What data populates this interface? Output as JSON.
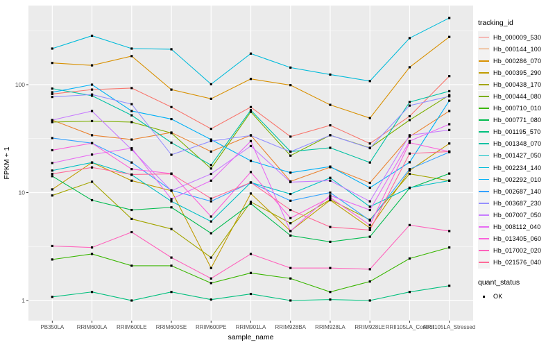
{
  "figure": {
    "background": "#FFFFFF",
    "panel_background": "#EBEBEB",
    "grid_color": "#FFFFFF",
    "axis_text_color": "#4D4D4D",
    "axis_title_color": "#000000",
    "tick_color": "#333333",
    "point_color": "#000000",
    "legend_key_background": "#F2F2F2"
  },
  "chart_data": {
    "type": "line",
    "title": "",
    "xlabel": "sample_name",
    "ylabel": "FPKM + 1",
    "y_scale": "log10",
    "ylim": [
      0.65,
      540
    ],
    "grid": true,
    "legend_position": "right",
    "y_ticks": [
      1,
      10,
      100
    ],
    "y_tick_labels": [
      "1",
      "10",
      "100"
    ],
    "y_minor_gridlines": [
      3.162,
      31.62,
      316.2
    ],
    "categories": [
      "PB350LA",
      "RRIM600LA",
      "RRIM600LE",
      "RRIM600SE",
      "RRIM600PE",
      "RRIM901LA",
      "RRIM928BA",
      "RRIM928LA",
      "RRIM928LE",
      "RRII105LA_Control",
      "RRII105LA_Stressed"
    ],
    "legend_title": "tracking_id",
    "series": [
      {
        "name": "Hb_000009_530",
        "color": "#F8766D",
        "values": [
          82,
          90,
          93,
          62,
          39,
          62,
          33,
          42,
          28.5,
          51,
          120
        ]
      },
      {
        "name": "Hb_000144_100",
        "color": "#EA8331",
        "values": [
          47,
          34,
          31,
          36,
          24,
          34,
          12.7,
          17.2,
          12.3,
          33,
          57
        ]
      },
      {
        "name": "Hb_000286_070",
        "color": "#D89000",
        "values": [
          159,
          151,
          184,
          90,
          74,
          113,
          99,
          65,
          49,
          145,
          277
        ]
      },
      {
        "name": "Hb_000395_290",
        "color": "#C09B00",
        "values": [
          10.7,
          19,
          12.9,
          10.4,
          2.0,
          9.8,
          4.4,
          8.5,
          4.7,
          16,
          28.5
        ]
      },
      {
        "name": "Hb_000438_170",
        "color": "#A3A500",
        "values": [
          9.4,
          12.6,
          5.7,
          4.6,
          2.5,
          8.2,
          5.2,
          8.6,
          5.6,
          14.9,
          12.9
        ]
      },
      {
        "name": "Hb_000444_080",
        "color": "#7CAE00",
        "values": [
          45,
          46,
          45,
          35.6,
          16.7,
          56,
          22,
          34,
          26,
          47,
          80
        ]
      },
      {
        "name": "Hb_000710_010",
        "color": "#39B600",
        "values": [
          2.4,
          2.7,
          2.1,
          2.1,
          1.45,
          1.8,
          1.6,
          1.2,
          1.5,
          2.45,
          3.1
        ]
      },
      {
        "name": "Hb_000771_080",
        "color": "#00BB4E",
        "values": [
          14.2,
          8.5,
          6.9,
          7.3,
          4.2,
          7.9,
          4.0,
          3.5,
          3.9,
          11,
          15
        ]
      },
      {
        "name": "Hb_001195_570",
        "color": "#00BF7D",
        "values": [
          1.08,
          1.2,
          1.0,
          1.2,
          1.02,
          1.15,
          1.0,
          1.02,
          1.0,
          1.2,
          1.37
        ]
      },
      {
        "name": "Hb_001348_070",
        "color": "#00C1A3",
        "values": [
          92,
          79,
          52,
          29,
          18,
          58,
          24,
          26,
          19,
          69,
          87
        ]
      },
      {
        "name": "Hb_001427_050",
        "color": "#00BFC4",
        "values": [
          16,
          19,
          14.6,
          8.3,
          5.4,
          12.4,
          9.7,
          13.7,
          7.4,
          11.1,
          12.9
        ]
      },
      {
        "name": "Hb_002234_140",
        "color": "#00BBDA",
        "values": [
          216,
          284,
          216,
          213,
          101,
          194,
          144,
          124,
          108,
          270,
          415
        ]
      },
      {
        "name": "Hb_002292_010",
        "color": "#00B0F6",
        "values": [
          85,
          100,
          57,
          48,
          31,
          19.7,
          15.3,
          17.4,
          11.1,
          19.1,
          71
        ]
      },
      {
        "name": "Hb_002687_140",
        "color": "#35A2FF",
        "values": [
          32,
          28.7,
          19,
          10.5,
          8.3,
          12.4,
          8.4,
          10,
          5.5,
          16.5,
          23.7
        ]
      },
      {
        "name": "Hb_003687_230",
        "color": "#9590FF",
        "values": [
          77,
          81,
          66,
          22.4,
          30,
          33.8,
          23.9,
          34,
          25.8,
          64,
          78
        ]
      },
      {
        "name": "Hb_007007_050",
        "color": "#C77CFF",
        "values": [
          47,
          57,
          25,
          10.4,
          14.9,
          27,
          12.5,
          12.9,
          8.3,
          34,
          38
        ]
      },
      {
        "name": "Hb_008112_040",
        "color": "#E76BF3",
        "values": [
          18.8,
          22.5,
          25.8,
          8.7,
          12.9,
          30,
          4.4,
          9.4,
          6.9,
          30,
          43
        ]
      },
      {
        "name": "Hb_013405_060",
        "color": "#FA62DB",
        "values": [
          24.7,
          28.7,
          16.5,
          15,
          6.0,
          15.5,
          5.8,
          9.0,
          5.0,
          29,
          24
        ]
      },
      {
        "name": "Hb_017002_020",
        "color": "#FF62BC",
        "values": [
          3.2,
          3.1,
          4.3,
          2.5,
          1.6,
          2.7,
          2.0,
          2.0,
          1.95,
          5.0,
          4.4
        ]
      },
      {
        "name": "Hb_021576_040",
        "color": "#FF6A98",
        "values": [
          14.9,
          17.1,
          14.7,
          14.9,
          8.8,
          12.4,
          6.9,
          4.8,
          4.5,
          23,
          24
        ]
      }
    ],
    "quant_legend": {
      "title": "quant_status",
      "items": [
        {
          "label": "OK",
          "marker": "black-square"
        }
      ]
    }
  }
}
